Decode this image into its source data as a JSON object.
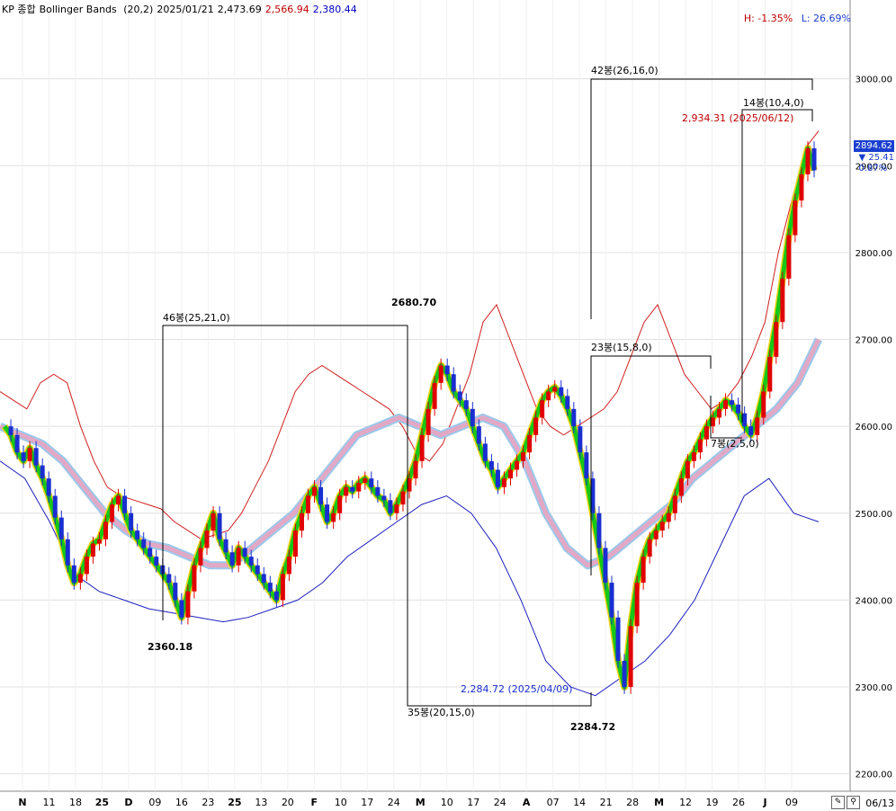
{
  "header": {
    "market": "KP 종합",
    "indicator": "Bollinger Bands",
    "params": "(20,2)",
    "date": "2025/01/21",
    "mid": "2,473.69",
    "upper": "2,566.94",
    "lower": "2,380.44",
    "high_label": "H: -1.35%",
    "low_label": "L: 26.69%",
    "colors": {
      "mid": "#000000",
      "upper": "#c00000",
      "lower": "#0000c0"
    }
  },
  "price_panel": {
    "current": "2894.62",
    "change": "▼ 25.41",
    "change_pct": "0.87%"
  },
  "annotations": {
    "span1": "46봉(25,21,0)",
    "span2": "35봉(20,15,0)",
    "span3": "42봉(26,16,0)",
    "span4": "23봉(15,8,0)",
    "span5": "14봉(10,4,0)",
    "span6": "7봉(2,5,0)",
    "low1": "2360.18",
    "high1": "2680.70",
    "low2": "2284.72",
    "low2_detail": "2,284.72 (2025/04/09)",
    "high2_detail": "2,934.31 (2025/06/12)"
  },
  "footer": {
    "last_date": "06/13"
  },
  "chart_data": {
    "type": "candlestick",
    "title": "KP 종합 Bollinger Bands (20,2)",
    "y_ticks": [
      "3000.00",
      "2900.00",
      "2800.00",
      "2700.00",
      "2600.00",
      "2500.00",
      "2400.00",
      "2300.00",
      "2200.00"
    ],
    "ylim": [
      2180,
      3070
    ],
    "x_ticks": [
      "N",
      "11",
      "18",
      "25",
      "D",
      "09",
      "16",
      "23",
      "25",
      "13",
      "20",
      "F",
      "10",
      "17",
      "24",
      "M",
      "10",
      "17",
      "24",
      "A",
      "07",
      "14",
      "21",
      "28",
      "M",
      "12",
      "19",
      "26",
      "J",
      "09"
    ],
    "grid": true,
    "series": [
      {
        "name": "close",
        "values": [
          2600,
          2590,
          2570,
          2560,
          2575,
          2555,
          2540,
          2520,
          2495,
          2470,
          2440,
          2420,
          2430,
          2450,
          2465,
          2470,
          2490,
          2510,
          2520,
          2500,
          2480,
          2470,
          2460,
          2450,
          2440,
          2430,
          2420,
          2400,
          2380,
          2410,
          2440,
          2460,
          2480,
          2500,
          2470,
          2455,
          2440,
          2460,
          2450,
          2440,
          2430,
          2420,
          2410,
          2400,
          2430,
          2450,
          2480,
          2500,
          2520,
          2530,
          2510,
          2490,
          2500,
          2520,
          2530,
          2525,
          2535,
          2540,
          2530,
          2520,
          2515,
          2500,
          2510,
          2525,
          2540,
          2560,
          2590,
          2620,
          2650,
          2670,
          2660,
          2640,
          2630,
          2620,
          2600,
          2580,
          2560,
          2550,
          2530,
          2540,
          2550,
          2560,
          2570,
          2590,
          2610,
          2630,
          2640,
          2645,
          2635,
          2620,
          2600,
          2570,
          2540,
          2500,
          2460,
          2420,
          2380,
          2330,
          2300,
          2370,
          2420,
          2450,
          2470,
          2480,
          2490,
          2500,
          2520,
          2540,
          2560,
          2570,
          2585,
          2600,
          2610,
          2620,
          2630,
          2625,
          2615,
          2600,
          2590,
          2610,
          2640,
          2680,
          2720,
          2770,
          2820,
          2860,
          2890,
          2920,
          2894.62
        ]
      },
      {
        "name": "upper",
        "values": [
          2640,
          2630,
          2620,
          2650,
          2660,
          2650,
          2600,
          2560,
          2530,
          2520,
          2515,
          2510,
          2505,
          2490,
          2480,
          2470,
          2475,
          2480,
          2500,
          2530,
          2560,
          2600,
          2640,
          2660,
          2670,
          2660,
          2650,
          2640,
          2630,
          2620,
          2600,
          2570,
          2560,
          2580,
          2620,
          2660,
          2720,
          2740,
          2700,
          2660,
          2620,
          2600,
          2590,
          2600,
          2610,
          2620,
          2640,
          2680,
          2720,
          2740,
          2700,
          2660,
          2640,
          2620,
          2630,
          2650,
          2680,
          2720,
          2800,
          2860,
          2920,
          2940
        ]
      },
      {
        "name": "middle",
        "values": [
          2600,
          2590,
          2580,
          2560,
          2530,
          2500,
          2480,
          2465,
          2460,
          2450,
          2440,
          2440,
          2460,
          2480,
          2500,
          2530,
          2560,
          2590,
          2600,
          2610,
          2600,
          2590,
          2600,
          2610,
          2600,
          2560,
          2500,
          2460,
          2440,
          2450,
          2470,
          2490,
          2510,
          2540,
          2560,
          2580,
          2600,
          2620,
          2650,
          2700
        ]
      },
      {
        "name": "lower",
        "values": [
          2560,
          2540,
          2490,
          2430,
          2410,
          2400,
          2390,
          2385,
          2380,
          2375,
          2380,
          2390,
          2400,
          2420,
          2450,
          2470,
          2490,
          2510,
          2520,
          2500,
          2460,
          2400,
          2330,
          2300,
          2290,
          2310,
          2330,
          2360,
          2400,
          2460,
          2520,
          2540,
          2500,
          2490
        ]
      }
    ]
  }
}
